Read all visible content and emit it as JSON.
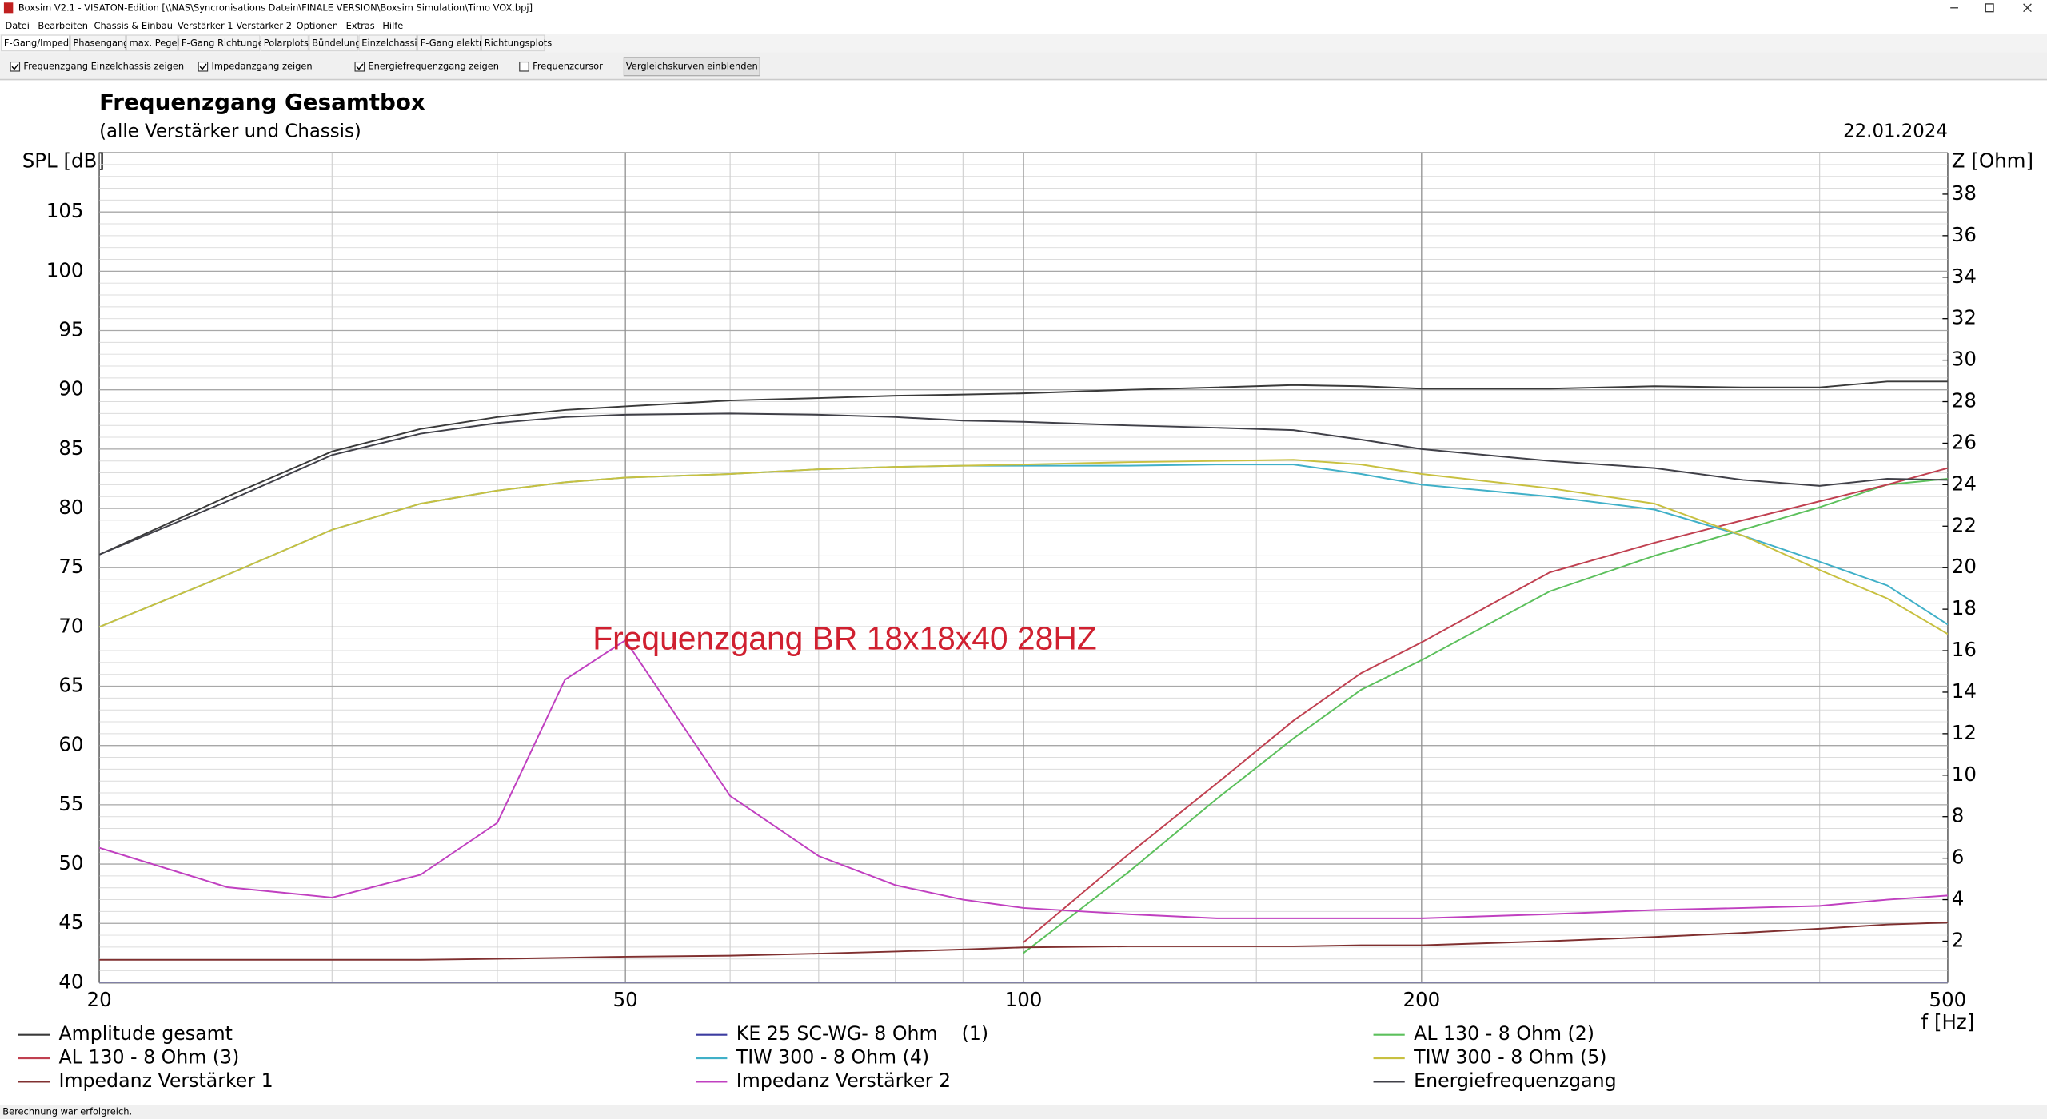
{
  "window": {
    "title": "Boxsim V2.1 - VISATON-Edition [\\\\NAS\\Syncronisations Datein\\FINALE VERSION\\Boxsim Simulation\\Timo VOX.bpj]",
    "menu": [
      "Datei",
      "Bearbeiten",
      "Chassis & Einbau",
      "Verstärker 1",
      "Verstärker 2",
      "Optionen",
      "Extras",
      "Hilfe"
    ],
    "tabs": [
      "F-Gang/Imped.",
      "Phasengang",
      "max. Pegel",
      "F-Gang Richtungen",
      "Polarplots",
      "Bündelung",
      "Einzelchassis",
      "F-Gang elektr.",
      "Richtungsplots"
    ],
    "options": [
      {
        "label": "Frequenzgang Einzelchassis zeigen",
        "checked": true
      },
      {
        "label": "Impedanzgang zeigen",
        "checked": true
      },
      {
        "label": "Energiefrequenzgang zeigen",
        "checked": true
      },
      {
        "label": "Frequenzcursor",
        "checked": false
      }
    ],
    "button": "Vergleichskurven einblenden",
    "status": "Berechnung war erfolgreich."
  },
  "chart_data": {
    "type": "line",
    "title": "Frequenzgang Gesamtbox",
    "subtitle": "(alle Verstärker und Chassis)",
    "date": "22.01.2024",
    "annotation": "Frequenzgang BR 18x18x40 28HZ",
    "ylabel": "SPL [dB]",
    "y2label": "Z [Ohm]",
    "xlabel": "f [Hz]",
    "xscale": "log",
    "xlim": [
      20,
      500
    ],
    "xticks": [
      20,
      50,
      100,
      200,
      500
    ],
    "xminor": [
      30,
      40,
      60,
      70,
      80,
      90,
      150,
      300,
      400
    ],
    "ylim": [
      40,
      110
    ],
    "yticks": [
      40,
      45,
      50,
      55,
      60,
      65,
      70,
      75,
      80,
      85,
      90,
      95,
      100,
      105
    ],
    "y_minor_step": 1,
    "y2lim": [
      0,
      40
    ],
    "y2ticks": [
      2,
      4,
      6,
      8,
      10,
      12,
      14,
      16,
      18,
      20,
      22,
      24,
      26,
      28,
      30,
      32,
      34,
      36,
      38
    ],
    "grid": true,
    "x": [
      20,
      25,
      30,
      35,
      40,
      45,
      50,
      60,
      70,
      80,
      90,
      100,
      120,
      140,
      160,
      180,
      200,
      250,
      300,
      350,
      400,
      450,
      500
    ],
    "series": [
      {
        "name": "Amplitude gesamt",
        "color": "#3a3a3a",
        "values": [
          76.1,
          81,
          84.8,
          86.7,
          87.7,
          88.3,
          88.6,
          89.1,
          89.3,
          89.5,
          89.6,
          89.7,
          90,
          90.2,
          90.4,
          90.3,
          90.1,
          90.1,
          90.3,
          90.2,
          90.2,
          90.7,
          90.7
        ]
      },
      {
        "name": "KE 25 SC-WG- 8 Ohm    (1)",
        "color": "#3c3ca0",
        "values": [
          40,
          40,
          40,
          40,
          40,
          40,
          40,
          40,
          40,
          40,
          40,
          40,
          40,
          40,
          40,
          40,
          40,
          40,
          40,
          40,
          40,
          40,
          40
        ]
      },
      {
        "name": "AL 130 - 8 Ohm (2)",
        "color": "#5cc05c",
        "values": [
          null,
          null,
          null,
          null,
          null,
          null,
          null,
          null,
          null,
          null,
          null,
          42.5,
          49.3,
          55.5,
          60.6,
          64.7,
          67.2,
          73,
          76,
          78.2,
          80.1,
          82,
          82.5
        ]
      },
      {
        "name": "AL 130 - 8 Ohm (3)",
        "color": "#c04050",
        "values": [
          null,
          null,
          null,
          null,
          null,
          null,
          null,
          null,
          null,
          null,
          null,
          43.4,
          50.8,
          56.8,
          62.1,
          66.1,
          68.7,
          74.6,
          77.1,
          79,
          80.6,
          82,
          83.4
        ]
      },
      {
        "name": "TIW 300 - 8 Ohm (4)",
        "color": "#40b0c8",
        "values": [
          70,
          74.4,
          78.2,
          80.4,
          81.5,
          82.2,
          82.6,
          82.9,
          83.3,
          83.5,
          83.6,
          83.6,
          83.6,
          83.7,
          83.7,
          82.9,
          82,
          81,
          79.9,
          77.7,
          75.5,
          73.5,
          70.2
        ]
      },
      {
        "name": "TIW 300 - 8 Ohm (5)",
        "color": "#c8c040",
        "values": [
          70,
          74.4,
          78.2,
          80.4,
          81.5,
          82.2,
          82.6,
          82.9,
          83.3,
          83.5,
          83.6,
          83.7,
          83.9,
          84,
          84.1,
          83.7,
          82.9,
          81.7,
          80.4,
          77.7,
          74.8,
          72.4,
          69.4
        ]
      },
      {
        "name": "Impedanz Verstärker 1",
        "color": "#803030",
        "axis": "y2",
        "values": [
          1.1,
          1.1,
          1.1,
          1.1,
          1.15,
          1.2,
          1.25,
          1.3,
          1.4,
          1.5,
          1.6,
          1.7,
          1.75,
          1.75,
          1.75,
          1.8,
          1.8,
          2,
          2.2,
          2.4,
          2.6,
          2.8,
          2.9
        ]
      },
      {
        "name": "Impedanz Verstärker 2",
        "color": "#c040c0",
        "axis": "y2",
        "values": [
          6.5,
          4.6,
          4.1,
          5.2,
          7.7,
          14.6,
          16.5,
          9,
          6.1,
          4.7,
          4,
          3.6,
          3.3,
          3.1,
          3.1,
          3.1,
          3.1,
          3.3,
          3.5,
          3.6,
          3.7,
          4,
          4.2
        ]
      },
      {
        "name": "Energiefrequenzgang",
        "color": "#404048",
        "values": [
          76.1,
          80.6,
          84.5,
          86.3,
          87.2,
          87.7,
          87.9,
          88,
          87.9,
          87.7,
          87.4,
          87.3,
          87,
          86.8,
          86.6,
          85.8,
          85,
          84,
          83.4,
          82.4,
          81.9,
          82.5,
          82.4
        ]
      }
    ]
  }
}
